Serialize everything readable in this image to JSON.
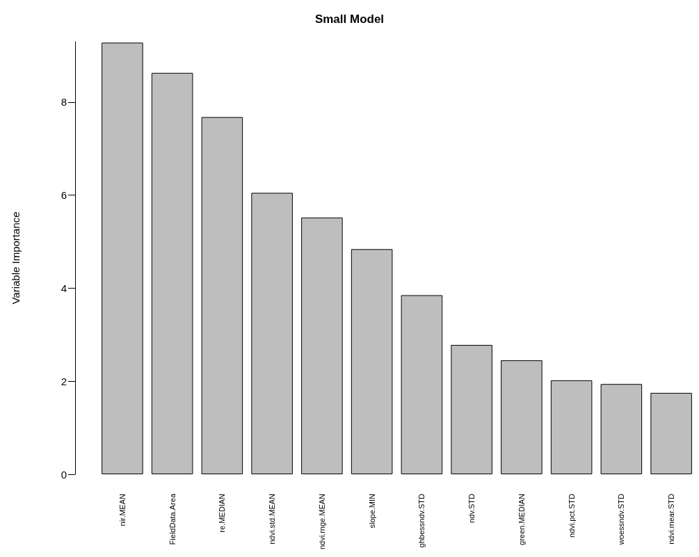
{
  "chart_data": {
    "type": "bar",
    "title": "Small Model",
    "ylabel": "Variable Importance",
    "categories": [
      "nir.MEAN",
      "FieldData.Area",
      "re.MEDIAN",
      "ndvi.std.MEAN",
      "ndvi.rnge.MEAN",
      "slope.MIN",
      "ghbessndv.STD",
      "ndv.STD",
      "green.MEDIAN",
      "ndvi.pct.STD",
      "woessndv.STD",
      "ndvi.mear.STD"
    ],
    "values": [
      9.28,
      8.63,
      7.68,
      6.05,
      5.52,
      4.84,
      3.85,
      2.78,
      2.45,
      2.02,
      1.94,
      1.75
    ],
    "color": "#bebebe",
    "ylim": [
      0,
      9.3
    ],
    "yticks": [
      0,
      2,
      4,
      6,
      8
    ],
    "grid": false
  }
}
